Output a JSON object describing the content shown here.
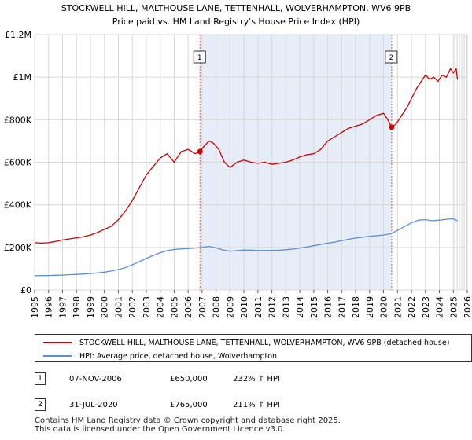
{
  "chart_data": {
    "type": "line",
    "title": "STOCKWELL HILL, MALTHOUSE LANE, TETTENHALL, WOLVERHAMPTON, WV6 9PB",
    "subtitle": "Price paid vs. HM Land Registry's House Price Index (HPI)",
    "xlabel": "",
    "ylabel": "",
    "xlim": [
      1995,
      2026
    ],
    "ylim": [
      0,
      1200000
    ],
    "x_ticks": [
      "1995",
      "1996",
      "1997",
      "1998",
      "1999",
      "2000",
      "2001",
      "2002",
      "2003",
      "2004",
      "2005",
      "2006",
      "2007",
      "2008",
      "2009",
      "2010",
      "2011",
      "2012",
      "2013",
      "2014",
      "2015",
      "2016",
      "2017",
      "2018",
      "2019",
      "2020",
      "2021",
      "2022",
      "2023",
      "2024",
      "2025",
      "2026"
    ],
    "y_ticks": [
      {
        "value": 0,
        "label": "£0"
      },
      {
        "value": 200000,
        "label": "£200K"
      },
      {
        "value": 400000,
        "label": "£400K"
      },
      {
        "value": 600000,
        "label": "£600K"
      },
      {
        "value": 800000,
        "label": "£800K"
      },
      {
        "value": 1000000,
        "label": "£1M"
      },
      {
        "value": 1200000,
        "label": "£1.2M"
      }
    ],
    "shaded_range": [
      2006.85,
      2020.58
    ],
    "projection_start": 2025.1,
    "series": [
      {
        "name": "STOCKWELL HILL, MALTHOUSE LANE, TETTENHALL, WOLVERHAMPTON, WV6 9PB (detached house)",
        "color": "#cc0000",
        "x": [
          1995.0,
          1995.5,
          1996.0,
          1996.5,
          1997.0,
          1997.5,
          1998.0,
          1998.5,
          1999.0,
          1999.5,
          2000.0,
          2000.5,
          2001.0,
          2001.5,
          2002.0,
          2002.5,
          2003.0,
          2003.5,
          2004.0,
          2004.5,
          2005.0,
          2005.5,
          2006.0,
          2006.5,
          2006.85,
          2007.2,
          2007.5,
          2007.8,
          2008.2,
          2008.6,
          2009.0,
          2009.5,
          2010.0,
          2010.5,
          2011.0,
          2011.5,
          2012.0,
          2012.5,
          2013.0,
          2013.5,
          2014.0,
          2014.5,
          2015.0,
          2015.5,
          2016.0,
          2016.5,
          2017.0,
          2017.5,
          2018.0,
          2018.5,
          2019.0,
          2019.5,
          2020.0,
          2020.3,
          2020.58,
          2020.9,
          2021.3,
          2021.7,
          2022.0,
          2022.4,
          2022.8,
          2023.0,
          2023.3,
          2023.6,
          2023.9,
          2024.2,
          2024.5,
          2024.8,
          2025.0,
          2025.2,
          2025.3
        ],
        "values": [
          222000,
          220000,
          222000,
          228000,
          235000,
          240000,
          245000,
          250000,
          258000,
          270000,
          285000,
          300000,
          330000,
          370000,
          420000,
          480000,
          540000,
          580000,
          620000,
          640000,
          600000,
          650000,
          660000,
          640000,
          650000,
          680000,
          700000,
          690000,
          660000,
          600000,
          575000,
          600000,
          610000,
          600000,
          595000,
          600000,
          590000,
          595000,
          600000,
          610000,
          625000,
          635000,
          640000,
          660000,
          700000,
          720000,
          740000,
          760000,
          770000,
          780000,
          800000,
          820000,
          830000,
          800000,
          765000,
          780000,
          820000,
          860000,
          900000,
          950000,
          990000,
          1010000,
          990000,
          1000000,
          980000,
          1010000,
          1000000,
          1040000,
          1020000,
          1040000,
          990000
        ]
      },
      {
        "name": "HPI: Average price, detached house, Wolverhampton",
        "color": "#5b8fd0",
        "x": [
          1995.0,
          1995.5,
          1996.0,
          1996.5,
          1997.0,
          1997.5,
          1998.0,
          1998.5,
          1999.0,
          1999.5,
          2000.0,
          2000.5,
          2001.0,
          2001.5,
          2002.0,
          2002.5,
          2003.0,
          2003.5,
          2004.0,
          2004.5,
          2005.0,
          2005.5,
          2006.0,
          2006.5,
          2007.0,
          2007.5,
          2008.0,
          2008.5,
          2009.0,
          2009.5,
          2010.0,
          2010.5,
          2011.0,
          2011.5,
          2012.0,
          2012.5,
          2013.0,
          2013.5,
          2014.0,
          2014.5,
          2015.0,
          2015.5,
          2016.0,
          2016.5,
          2017.0,
          2017.5,
          2018.0,
          2018.5,
          2019.0,
          2019.5,
          2020.0,
          2020.5,
          2021.0,
          2021.5,
          2022.0,
          2022.5,
          2023.0,
          2023.5,
          2024.0,
          2024.5,
          2025.0,
          2025.3
        ],
        "values": [
          67000,
          67500,
          68000,
          69000,
          70000,
          71500,
          73000,
          75000,
          77000,
          80000,
          84000,
          89000,
          96000,
          105000,
          118000,
          133000,
          148000,
          162000,
          175000,
          185000,
          190000,
          193000,
          195000,
          197000,
          200000,
          205000,
          198000,
          188000,
          182000,
          185000,
          188000,
          187000,
          185000,
          186000,
          186000,
          187000,
          189000,
          192000,
          197000,
          202000,
          208000,
          214000,
          220000,
          225000,
          232000,
          238000,
          244000,
          248000,
          252000,
          255000,
          258000,
          264000,
          280000,
          298000,
          315000,
          328000,
          330000,
          325000,
          328000,
          332000,
          334000,
          325000
        ]
      }
    ],
    "sales": [
      {
        "id": "1",
        "x": 2006.85,
        "value": 650000
      },
      {
        "id": "2",
        "x": 2020.58,
        "value": 765000
      }
    ]
  },
  "legend": [
    {
      "label": "STOCKWELL HILL, MALTHOUSE LANE, TETTENHALL, WOLVERHAMPTON, WV6 9PB (detached house)",
      "color": "#cc0000"
    },
    {
      "label": "HPI: Average price, detached house, Wolverhampton",
      "color": "#5b8fd0"
    }
  ],
  "sales_table": [
    {
      "num": "1",
      "date": "07-NOV-2006",
      "price": "£650,000",
      "hpi": "232% ↑ HPI"
    },
    {
      "num": "2",
      "date": "31-JUL-2020",
      "price": "£765,000",
      "hpi": "211% ↑ HPI"
    }
  ],
  "footer": {
    "line1": "Contains HM Land Registry data © Crown copyright and database right 2025.",
    "line2": "This data is licensed under the Open Government Licence v3.0."
  }
}
